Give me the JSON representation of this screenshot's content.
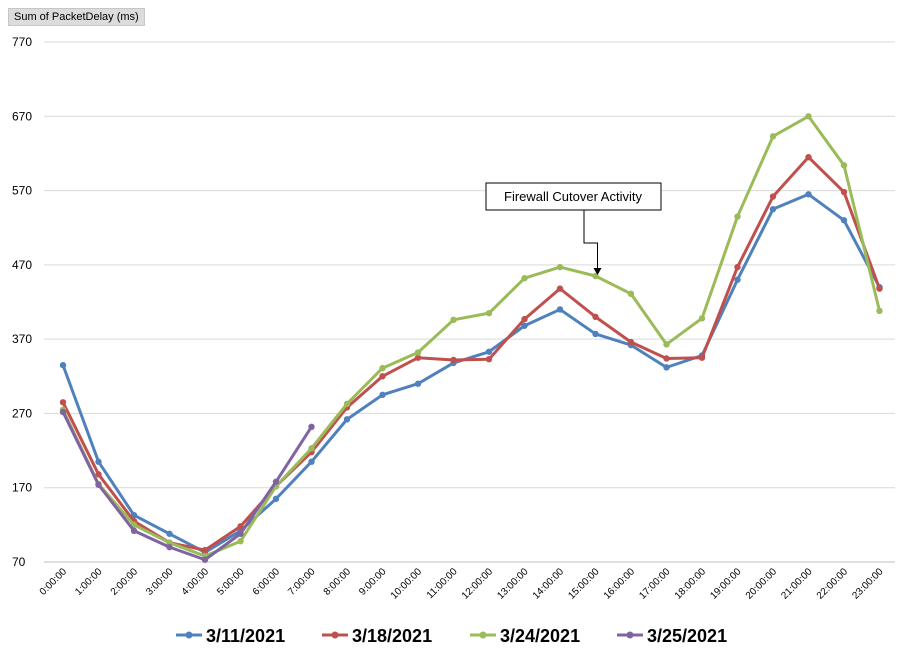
{
  "field_button": {
    "label": "Sum of PacketDelay (ms)"
  },
  "annotation": {
    "text": "Firewall Cutover Activity"
  },
  "chart_data": {
    "type": "line",
    "ylabel": "Sum of PacketDelay (ms)",
    "ylim": [
      70,
      770
    ],
    "yticks": [
      70,
      170,
      270,
      370,
      470,
      570,
      670,
      770
    ],
    "grid": true,
    "legend_position": "bottom",
    "categories": [
      "0:00:00",
      "1:00:00",
      "2:00:00",
      "3:00:00",
      "4:00:00",
      "5:00:00",
      "6:00:00",
      "7:00:00",
      "8:00:00",
      "9:00:00",
      "10:00:00",
      "11:00:00",
      "12:00:00",
      "13:00:00",
      "14:00:00",
      "15:00:00",
      "16:00:00",
      "17:00:00",
      "18:00:00",
      "19:00:00",
      "20:00:00",
      "21:00:00",
      "22:00:00",
      "23:00:00"
    ],
    "series": [
      {
        "name": "3/11/2021",
        "color": "#4f81bd",
        "values": [
          335,
          205,
          133,
          108,
          83,
          112,
          155,
          205,
          262,
          295,
          310,
          338,
          353,
          388,
          410,
          377,
          362,
          332,
          348,
          450,
          545,
          565,
          530,
          440
        ]
      },
      {
        "name": "3/18/2021",
        "color": "#c0504d",
        "values": [
          285,
          188,
          125,
          96,
          86,
          118,
          172,
          218,
          278,
          320,
          345,
          342,
          343,
          397,
          438,
          400,
          366,
          344,
          345,
          467,
          562,
          615,
          568,
          438
        ]
      },
      {
        "name": "3/24/2021",
        "color": "#9bbb59",
        "values": [
          275,
          175,
          120,
          96,
          78,
          98,
          172,
          223,
          283,
          331,
          352,
          396,
          405,
          452,
          467,
          455,
          431,
          363,
          398,
          535,
          643,
          670,
          604,
          408
        ]
      },
      {
        "name": "3/25/2021",
        "color": "#8064a2",
        "values": [
          272,
          174,
          112,
          90,
          73,
          108,
          178,
          252,
          null,
          null,
          null,
          null,
          null,
          null,
          null,
          null,
          null,
          null,
          null,
          null,
          null,
          null,
          null,
          null
        ]
      }
    ],
    "annotations": [
      {
        "text": "Firewall Cutover Activity",
        "category": "15:00:00"
      }
    ]
  }
}
